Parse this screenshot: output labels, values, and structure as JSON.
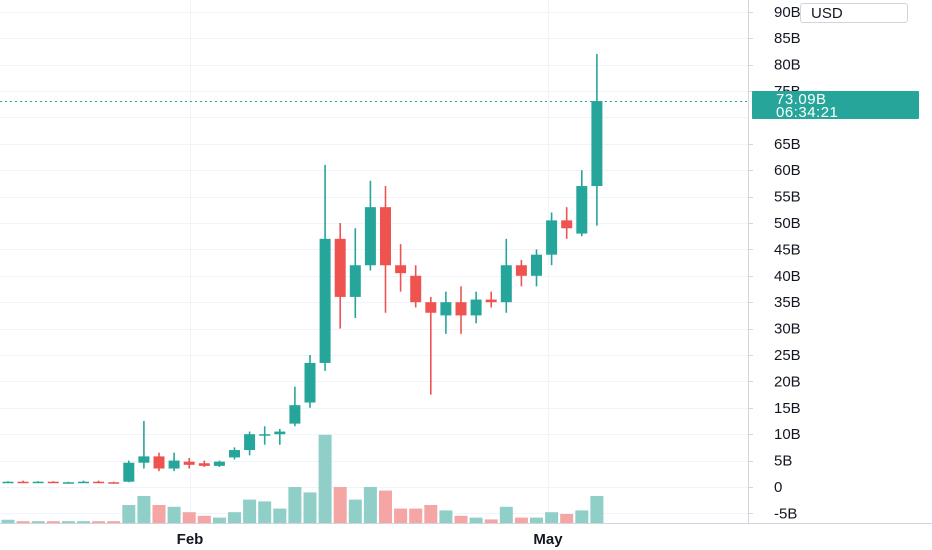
{
  "currency": "USD",
  "last_price_label": "73.09B",
  "countdown": "06:34:21",
  "colors": {
    "up": "#26a69a",
    "down": "#ef5350",
    "up_volume": "#90cfc7",
    "down_volume": "#f5a5a3",
    "grid": "#f0f3fa"
  },
  "chart_data": {
    "type": "candlestick",
    "y_unit": "B",
    "y_ticks": [
      "90B",
      "85B",
      "80B",
      "75B",
      "70B",
      "65B",
      "60B",
      "55B",
      "50B",
      "45B",
      "40B",
      "35B",
      "30B",
      "25B",
      "20B",
      "15B",
      "10B",
      "5B",
      "0",
      "-5B"
    ],
    "y_tick_values": [
      90,
      85,
      80,
      75,
      70,
      65,
      60,
      55,
      50,
      45,
      40,
      35,
      30,
      25,
      20,
      15,
      10,
      5,
      0,
      -5
    ],
    "ylim": [
      -7,
      92
    ],
    "x_labels": [
      "Feb",
      "May"
    ],
    "last_price": 73.09,
    "candles": [
      {
        "o": 0.9,
        "h": 1.1,
        "l": 0.8,
        "c": 1.0
      },
      {
        "o": 1.0,
        "h": 1.2,
        "l": 0.9,
        "c": 0.9
      },
      {
        "o": 0.9,
        "h": 1.1,
        "l": 0.8,
        "c": 1.0
      },
      {
        "o": 1.0,
        "h": 1.1,
        "l": 0.8,
        "c": 0.8
      },
      {
        "o": 0.8,
        "h": 1.0,
        "l": 0.7,
        "c": 0.9
      },
      {
        "o": 0.9,
        "h": 1.2,
        "l": 0.8,
        "c": 1.0
      },
      {
        "o": 1.0,
        "h": 1.2,
        "l": 0.9,
        "c": 0.9
      },
      {
        "o": 0.9,
        "h": 1.0,
        "l": 0.7,
        "c": 0.8
      },
      {
        "o": 1.0,
        "h": 5.0,
        "l": 0.9,
        "c": 4.6
      },
      {
        "o": 4.6,
        "h": 12.5,
        "l": 3.5,
        "c": 5.8
      },
      {
        "o": 5.8,
        "h": 6.5,
        "l": 3.0,
        "c": 3.5
      },
      {
        "o": 3.5,
        "h": 6.5,
        "l": 3.0,
        "c": 5.0
      },
      {
        "o": 4.8,
        "h": 5.5,
        "l": 3.5,
        "c": 4.2
      },
      {
        "o": 4.5,
        "h": 5.0,
        "l": 3.8,
        "c": 4.0
      },
      {
        "o": 4.0,
        "h": 5.0,
        "l": 3.8,
        "c": 4.8
      },
      {
        "o": 5.6,
        "h": 7.5,
        "l": 5.2,
        "c": 7.0
      },
      {
        "o": 7.0,
        "h": 10.5,
        "l": 6.0,
        "c": 10.0
      },
      {
        "o": 10.0,
        "h": 11.5,
        "l": 8.0,
        "c": 10.0
      },
      {
        "o": 10.0,
        "h": 11.0,
        "l": 8.0,
        "c": 10.5
      },
      {
        "o": 12.0,
        "h": 19.0,
        "l": 11.5,
        "c": 15.5
      },
      {
        "o": 16.0,
        "h": 25.0,
        "l": 15.0,
        "c": 23.5
      },
      {
        "o": 23.5,
        "h": 61.0,
        "l": 22.0,
        "c": 47.0
      },
      {
        "o": 47.0,
        "h": 50.0,
        "l": 30.0,
        "c": 36.0
      },
      {
        "o": 36.0,
        "h": 49.0,
        "l": 32.0,
        "c": 42.0
      },
      {
        "o": 42.0,
        "h": 58.0,
        "l": 41.0,
        "c": 53.0
      },
      {
        "o": 53.0,
        "h": 57.0,
        "l": 33.0,
        "c": 42.0
      },
      {
        "o": 42.0,
        "h": 46.0,
        "l": 37.0,
        "c": 40.5
      },
      {
        "o": 40.0,
        "h": 42.0,
        "l": 34.0,
        "c": 35.0
      },
      {
        "o": 35.0,
        "h": 36.0,
        "l": 17.5,
        "c": 33.0
      },
      {
        "o": 32.5,
        "h": 37.0,
        "l": 29.0,
        "c": 35.0
      },
      {
        "o": 35.0,
        "h": 38.0,
        "l": 29.0,
        "c": 32.5
      },
      {
        "o": 32.5,
        "h": 37.0,
        "l": 31.0,
        "c": 35.5
      },
      {
        "o": 35.5,
        "h": 37.0,
        "l": 34.0,
        "c": 35.0
      },
      {
        "o": 35.0,
        "h": 47.0,
        "l": 33.0,
        "c": 42.0
      },
      {
        "o": 42.0,
        "h": 43.0,
        "l": 38.0,
        "c": 40.0
      },
      {
        "o": 40.0,
        "h": 45.0,
        "l": 38.0,
        "c": 44.0
      },
      {
        "o": 44.0,
        "h": 52.0,
        "l": 42.0,
        "c": 50.5
      },
      {
        "o": 50.5,
        "h": 53.0,
        "l": 47.0,
        "c": 49.0
      },
      {
        "o": 48.0,
        "h": 60.0,
        "l": 47.5,
        "c": 57.0
      },
      {
        "o": 57.0,
        "h": 82.0,
        "l": 49.5,
        "c": 73.09
      }
    ],
    "volume_level_from_baseline": [
      0.18,
      0.1,
      0.1,
      0.1,
      0.1,
      0.1,
      0.1,
      0.1,
      1.0,
      1.5,
      1.0,
      0.9,
      0.6,
      0.4,
      0.3,
      0.6,
      1.3,
      1.2,
      0.8,
      2.0,
      1.7,
      4.9,
      2.0,
      1.3,
      2.0,
      1.8,
      0.8,
      0.8,
      1.0,
      0.7,
      0.4,
      0.3,
      0.2,
      0.9,
      0.3,
      0.3,
      0.6,
      0.5,
      0.7,
      1.5
    ]
  }
}
